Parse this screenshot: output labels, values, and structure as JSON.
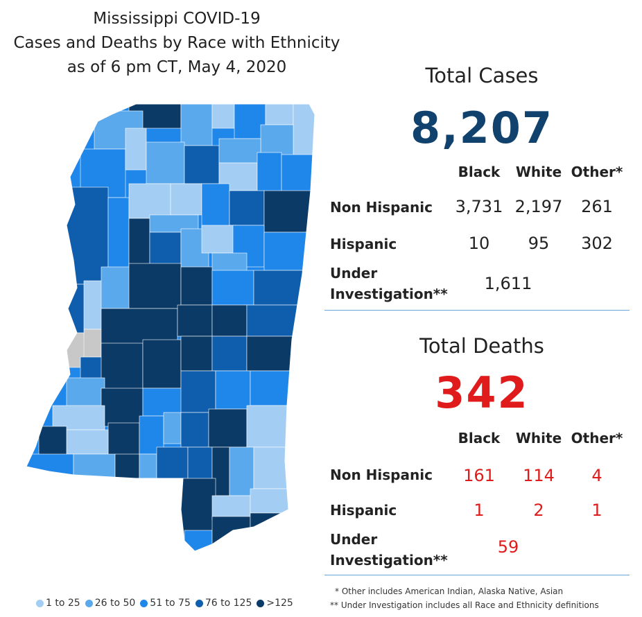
{
  "title": {
    "line1": "Mississippi COVID-19",
    "line2": "Cases and Deaths by Race with Ethnicity",
    "line3": "as of 6 pm CT, May 4, 2020"
  },
  "legend": {
    "items": [
      {
        "label": "1 to 25",
        "color": "#a3cdf2"
      },
      {
        "label": "26 to 50",
        "color": "#5aa9ec"
      },
      {
        "label": "51 to 75",
        "color": "#1f87ea"
      },
      {
        "label": "76 to 125",
        "color": "#0f5ead"
      },
      {
        "label": ">125",
        "color": "#0b3a66"
      }
    ],
    "no_data_color": "#c8c8c8"
  },
  "cases": {
    "title": "Total Cases",
    "total": "8,207",
    "columns": [
      "Black",
      "White",
      "Other*"
    ],
    "rows": [
      {
        "label": "Non Hispanic",
        "values": [
          "3,731",
          "2,197",
          "261"
        ]
      },
      {
        "label": "Hispanic",
        "values": [
          "10",
          "95",
          "302"
        ]
      }
    ],
    "under_investigation": {
      "label_line1": "Under",
      "label_line2": "Investigation**",
      "value": "1,611"
    }
  },
  "deaths": {
    "title": "Total Deaths",
    "total": "342",
    "columns": [
      "Black",
      "White",
      "Other*"
    ],
    "rows": [
      {
        "label": "Non Hispanic",
        "values": [
          "161",
          "114",
          "4"
        ]
      },
      {
        "label": "Hispanic",
        "values": [
          "1",
          "2",
          "1"
        ]
      }
    ],
    "under_investigation": {
      "label_line1": "Under",
      "label_line2": "Investigation**",
      "value": "59"
    }
  },
  "footnotes": {
    "other": "* Other includes American Indian, Alaska Native, Asian",
    "under_investigation": "** Under Investigation includes all Race and Ethnicity definitions"
  },
  "colors": {
    "cases_total": "#11426e",
    "deaths": "#e01b1b",
    "divider": "#6aa3d6"
  }
}
